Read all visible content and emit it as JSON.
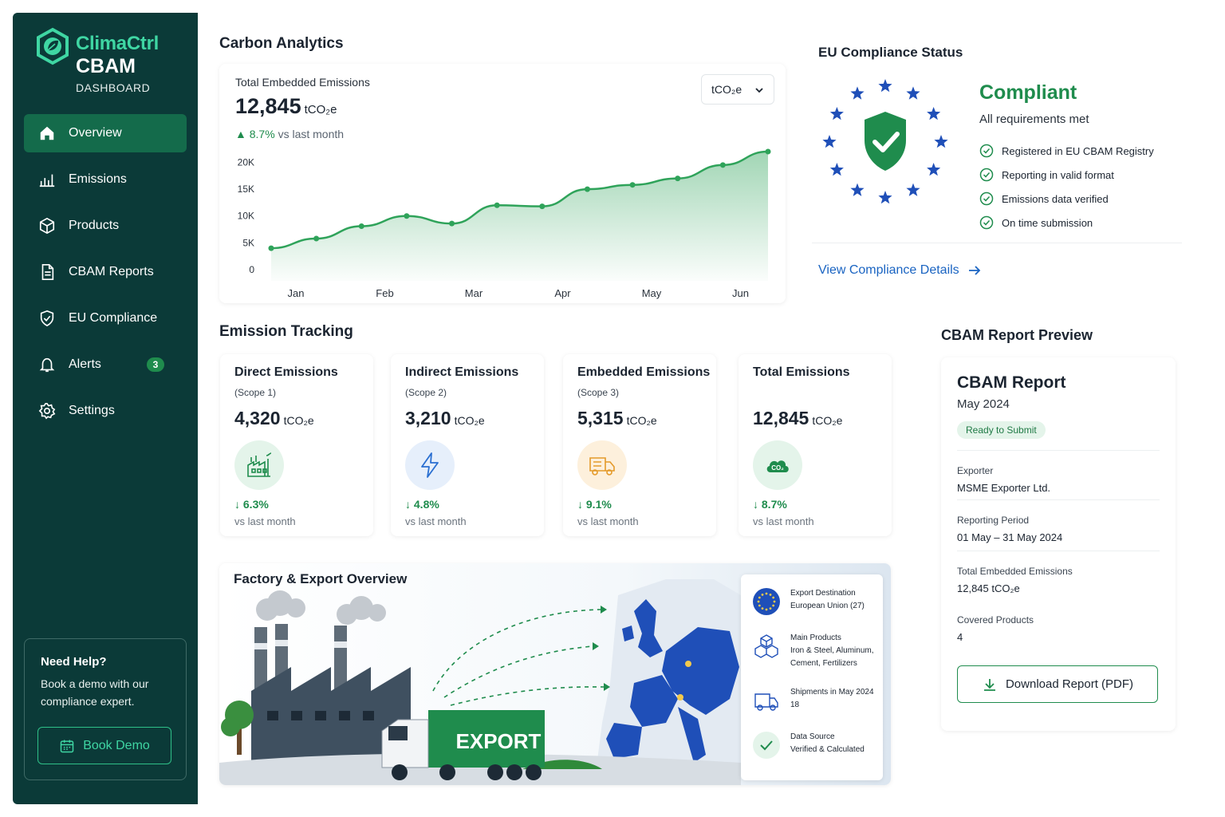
{
  "brand": {
    "name": "ClimaCtrl",
    "product": "CBAM",
    "subtitle": "DASHBOARD"
  },
  "nav": [
    {
      "label": "Overview",
      "icon": "home-icon",
      "active": true
    },
    {
      "label": "Emissions",
      "icon": "bar-chart-icon"
    },
    {
      "label": "Products",
      "icon": "cube-icon"
    },
    {
      "label": "CBAM Reports",
      "icon": "document-icon"
    },
    {
      "label": "EU Compliance",
      "icon": "shield-icon"
    },
    {
      "label": "Alerts",
      "icon": "bell-icon",
      "badge": "3"
    },
    {
      "label": "Settings",
      "icon": "gear-icon"
    }
  ],
  "help": {
    "title": "Need Help?",
    "text": "Book a demo with our compliance expert.",
    "button": "Book Demo"
  },
  "analytics": {
    "section_title": "Carbon Analytics",
    "label": "Total Embedded Emissions",
    "value": "12,845",
    "unit": "tCO₂e",
    "change": "8.7%",
    "change_suffix": "vs last month",
    "unit_select": "tCO₂e"
  },
  "chart_data": {
    "type": "area",
    "x": [
      "Jan",
      "",
      "Feb",
      "",
      "Mar",
      "",
      "Apr",
      "",
      "May",
      "",
      "Jun",
      ""
    ],
    "x_tick_labels": [
      "Jan",
      "Feb",
      "Mar",
      "Apr",
      "May",
      "Jun"
    ],
    "values": [
      4000,
      5800,
      8100,
      10000,
      8600,
      12000,
      11800,
      15000,
      15800,
      17000,
      19500,
      22000
    ],
    "ylim": [
      0,
      22000
    ],
    "y_ticks": [
      "0",
      "5K",
      "10K",
      "15K",
      "20K"
    ],
    "color": "#2fa35a",
    "grid": false
  },
  "compliance": {
    "section_title": "EU Compliance Status",
    "status": "Compliant",
    "subtitle": "All requirements met",
    "items": [
      "Registered in EU CBAM Registry",
      "Reporting in valid format",
      "Emissions data verified",
      "On time submission"
    ],
    "link": "View Compliance Details"
  },
  "tracking": {
    "section_title": "Emission Tracking",
    "cards": [
      {
        "title": "Direct Emissions",
        "scope": "(Scope 1)",
        "value": "4,320",
        "unit": "tCO₂e",
        "change": "6.3%",
        "vs": "vs last month",
        "icon": "factory-icon",
        "icon_bg": "#e4f4ea"
      },
      {
        "title": "Indirect Emissions",
        "scope": "(Scope 2)",
        "value": "3,210",
        "unit": "tCO₂e",
        "change": "4.8%",
        "vs": "vs last month",
        "icon": "lightning-icon",
        "icon_bg": "#e6effb"
      },
      {
        "title": "Embedded Emissions",
        "scope": "(Scope 3)",
        "value": "5,315",
        "unit": "tCO₂e",
        "change": "9.1%",
        "vs": "vs last month",
        "icon": "truck-icon",
        "icon_bg": "#fdf0dc"
      },
      {
        "title": "Total Emissions",
        "scope": "",
        "value": "12,845",
        "unit": "tCO₂e",
        "change": "8.7%",
        "vs": "vs last month",
        "icon": "co2-cloud-icon",
        "icon_bg": "#e4f4ea"
      }
    ]
  },
  "factory": {
    "section_title": "Factory & Export Overview",
    "truck_label": "EXPORT",
    "info": [
      {
        "label": "Export Destination",
        "value": "European Union (27)",
        "icon": "eu-flag-icon"
      },
      {
        "label": "Main Products",
        "value": "Iron & Steel, Aluminum, Cement, Fertilizers",
        "icon": "boxes-icon"
      },
      {
        "label": "Shipments in May 2024",
        "value": "18",
        "icon": "truck-icon"
      },
      {
        "label": "Data Source",
        "value": "Verified & Calculated",
        "icon": "check-circle-icon"
      }
    ]
  },
  "report": {
    "section_title": "CBAM Report Preview",
    "title": "CBAM Report",
    "month": "May 2024",
    "badge": "Ready to Submit",
    "fields": [
      {
        "label": "Exporter",
        "value": "MSME Exporter Ltd."
      },
      {
        "label": "Reporting Period",
        "value": "01 May – 31 May 2024"
      },
      {
        "label": "Total Embedded Emissions",
        "value": "12,845 tCO₂e"
      },
      {
        "label": "Covered Products",
        "value": "4"
      }
    ],
    "download": "Download Report (PDF)"
  },
  "colors": {
    "sidebar": "#0b3a38",
    "accent": "#1f8c4d",
    "brand": "#3fd6a3",
    "link": "#1a64c2",
    "eu_blue": "#1f4fb8"
  }
}
